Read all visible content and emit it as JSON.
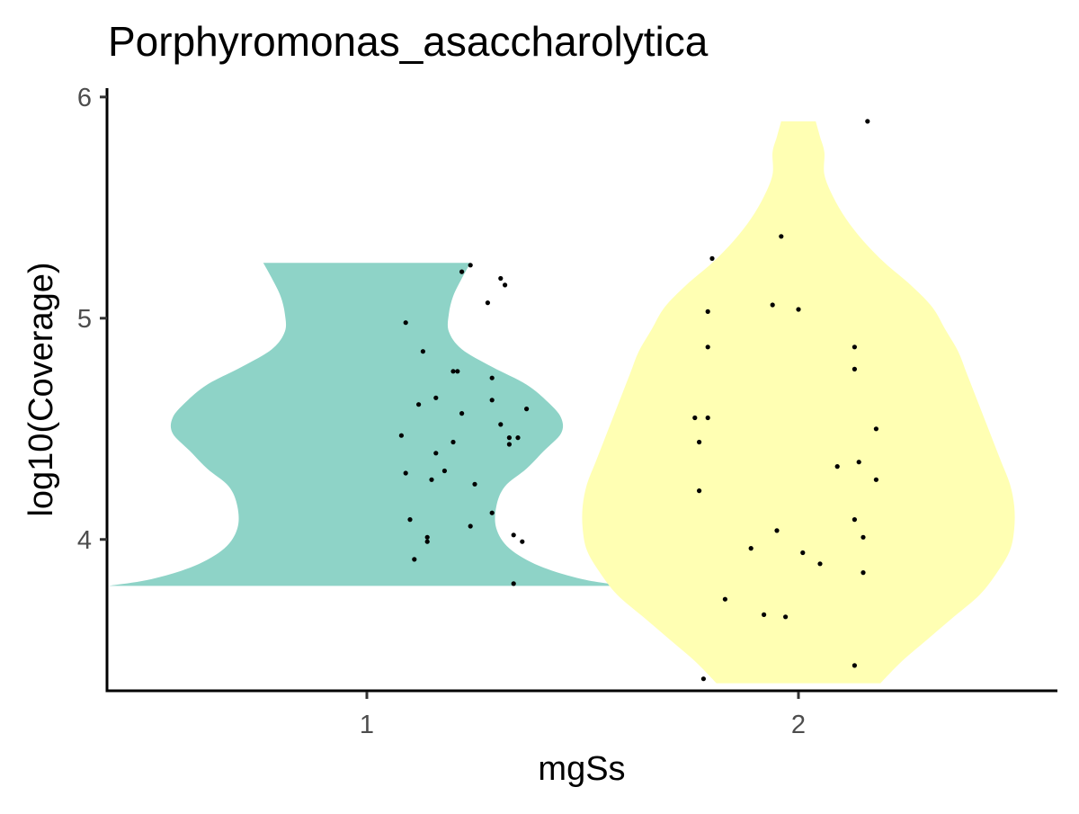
{
  "chart_data": {
    "type": "violin",
    "title": "Porphyromonas_asaccharolytica",
    "xlabel": "mgSs",
    "ylabel": "log10(Coverage)",
    "categories": [
      "1",
      "2"
    ],
    "ylim": [
      3.32,
      6.04
    ],
    "yticks": [
      4,
      5,
      6
    ],
    "ytick_labels": [
      "4",
      "5",
      "6"
    ],
    "grid": false,
    "legend": "none",
    "colors": {
      "1": "#8ED3C7",
      "2": "#FFFFB3",
      "points": "#000000",
      "axis": "#000000",
      "tick_label": "#4d4d4d"
    },
    "violins": [
      {
        "category": "1",
        "y_range": [
          3.79,
          5.25
        ],
        "density_profile": [
          {
            "y": 3.79,
            "w": 0.6
          },
          {
            "y": 3.82,
            "w": 0.5
          },
          {
            "y": 3.88,
            "w": 0.4
          },
          {
            "y": 3.96,
            "w": 0.33
          },
          {
            "y": 4.05,
            "w": 0.3
          },
          {
            "y": 4.15,
            "w": 0.3
          },
          {
            "y": 4.24,
            "w": 0.32
          },
          {
            "y": 4.32,
            "w": 0.37
          },
          {
            "y": 4.4,
            "w": 0.41
          },
          {
            "y": 4.48,
            "w": 0.45
          },
          {
            "y": 4.55,
            "w": 0.45
          },
          {
            "y": 4.62,
            "w": 0.42
          },
          {
            "y": 4.7,
            "w": 0.37
          },
          {
            "y": 4.78,
            "w": 0.29
          },
          {
            "y": 4.86,
            "w": 0.22
          },
          {
            "y": 4.94,
            "w": 0.19
          },
          {
            "y": 5.02,
            "w": 0.19
          },
          {
            "y": 5.1,
            "w": 0.2
          },
          {
            "y": 5.18,
            "w": 0.22
          },
          {
            "y": 5.25,
            "w": 0.24
          }
        ],
        "points": [
          {
            "x": 1.24,
            "y": 5.24
          },
          {
            "x": 1.22,
            "y": 5.21
          },
          {
            "x": 1.31,
            "y": 5.18
          },
          {
            "x": 1.32,
            "y": 5.15
          },
          {
            "x": 1.28,
            "y": 5.07
          },
          {
            "x": 1.09,
            "y": 4.98
          },
          {
            "x": 1.13,
            "y": 4.85
          },
          {
            "x": 1.2,
            "y": 4.76
          },
          {
            "x": 1.21,
            "y": 4.76
          },
          {
            "x": 1.29,
            "y": 4.73
          },
          {
            "x": 1.16,
            "y": 4.64
          },
          {
            "x": 1.29,
            "y": 4.63
          },
          {
            "x": 1.12,
            "y": 4.61
          },
          {
            "x": 1.37,
            "y": 4.59
          },
          {
            "x": 1.22,
            "y": 4.57
          },
          {
            "x": 1.31,
            "y": 4.52
          },
          {
            "x": 1.08,
            "y": 4.47
          },
          {
            "x": 1.35,
            "y": 4.46
          },
          {
            "x": 1.33,
            "y": 4.46
          },
          {
            "x": 1.33,
            "y": 4.43
          },
          {
            "x": 1.2,
            "y": 4.44
          },
          {
            "x": 1.16,
            "y": 4.39
          },
          {
            "x": 1.18,
            "y": 4.31
          },
          {
            "x": 1.09,
            "y": 4.3
          },
          {
            "x": 1.15,
            "y": 4.27
          },
          {
            "x": 1.25,
            "y": 4.25
          },
          {
            "x": 1.29,
            "y": 4.12
          },
          {
            "x": 1.1,
            "y": 4.09
          },
          {
            "x": 1.24,
            "y": 4.06
          },
          {
            "x": 1.34,
            "y": 4.02
          },
          {
            "x": 1.14,
            "y": 4.01
          },
          {
            "x": 1.14,
            "y": 3.99
          },
          {
            "x": 1.36,
            "y": 3.99
          },
          {
            "x": 1.11,
            "y": 3.91
          },
          {
            "x": 1.34,
            "y": 3.8
          }
        ]
      },
      {
        "category": "2",
        "y_range": [
          3.35,
          5.89
        ],
        "density_profile": [
          {
            "y": 3.35,
            "w": 0.19
          },
          {
            "y": 3.45,
            "w": 0.24
          },
          {
            "y": 3.55,
            "w": 0.3
          },
          {
            "y": 3.65,
            "w": 0.36
          },
          {
            "y": 3.75,
            "w": 0.42
          },
          {
            "y": 3.85,
            "w": 0.46
          },
          {
            "y": 3.95,
            "w": 0.49
          },
          {
            "y": 4.05,
            "w": 0.5
          },
          {
            "y": 4.15,
            "w": 0.5
          },
          {
            "y": 4.25,
            "w": 0.49
          },
          {
            "y": 4.35,
            "w": 0.47
          },
          {
            "y": 4.45,
            "w": 0.45
          },
          {
            "y": 4.55,
            "w": 0.43
          },
          {
            "y": 4.65,
            "w": 0.41
          },
          {
            "y": 4.75,
            "w": 0.39
          },
          {
            "y": 4.85,
            "w": 0.37
          },
          {
            "y": 4.95,
            "w": 0.34
          },
          {
            "y": 5.05,
            "w": 0.31
          },
          {
            "y": 5.15,
            "w": 0.26
          },
          {
            "y": 5.25,
            "w": 0.2
          },
          {
            "y": 5.35,
            "w": 0.15
          },
          {
            "y": 5.45,
            "w": 0.11
          },
          {
            "y": 5.55,
            "w": 0.08
          },
          {
            "y": 5.65,
            "w": 0.06
          },
          {
            "y": 5.75,
            "w": 0.06
          },
          {
            "y": 5.82,
            "w": 0.05
          },
          {
            "y": 5.89,
            "w": 0.04
          }
        ]
      }
    ],
    "points_series_2": [
      {
        "x": 2.16,
        "y": 5.89
      },
      {
        "x": 1.96,
        "y": 5.37
      },
      {
        "x": 1.8,
        "y": 5.27
      },
      {
        "x": 1.94,
        "y": 5.06
      },
      {
        "x": 2.0,
        "y": 5.04
      },
      {
        "x": 1.79,
        "y": 5.03
      },
      {
        "x": 1.79,
        "y": 4.87
      },
      {
        "x": 2.13,
        "y": 4.87
      },
      {
        "x": 2.13,
        "y": 4.77
      },
      {
        "x": 1.76,
        "y": 4.55
      },
      {
        "x": 1.79,
        "y": 4.55
      },
      {
        "x": 2.18,
        "y": 4.5
      },
      {
        "x": 1.77,
        "y": 4.44
      },
      {
        "x": 2.14,
        "y": 4.35
      },
      {
        "x": 2.09,
        "y": 4.33
      },
      {
        "x": 2.18,
        "y": 4.27
      },
      {
        "x": 1.77,
        "y": 4.22
      },
      {
        "x": 2.13,
        "y": 4.09
      },
      {
        "x": 1.95,
        "y": 4.04
      },
      {
        "x": 2.15,
        "y": 4.01
      },
      {
        "x": 1.89,
        "y": 3.96
      },
      {
        "x": 2.01,
        "y": 3.94
      },
      {
        "x": 2.05,
        "y": 3.89
      },
      {
        "x": 2.15,
        "y": 3.85
      },
      {
        "x": 1.83,
        "y": 3.73
      },
      {
        "x": 1.92,
        "y": 3.66
      },
      {
        "x": 1.97,
        "y": 3.65
      },
      {
        "x": 2.13,
        "y": 3.43
      },
      {
        "x": 1.78,
        "y": 3.37
      }
    ]
  }
}
